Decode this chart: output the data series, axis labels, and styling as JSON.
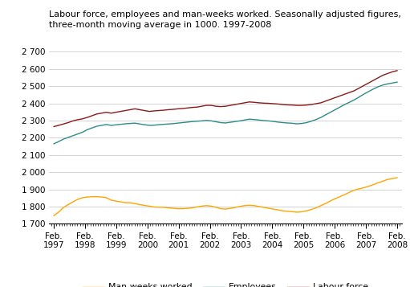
{
  "title_line1": "Labour force, employees and man-weeks worked. Seasonally adjusted figures,",
  "title_line2": "three-month moving average in 1000. 1997-2008",
  "ylim": [
    1700,
    2700
  ],
  "yticks": [
    1700,
    1800,
    1900,
    2000,
    2100,
    2200,
    2300,
    2400,
    2500,
    2600,
    2700
  ],
  "xtick_labels": [
    "Feb.\n1997",
    "Feb.\n1998",
    "Feb.\n1999",
    "Feb.\n2000",
    "Feb.\n2001",
    "Feb.\n2002",
    "Feb.\n2003",
    "Feb.\n2004",
    "Feb.\n2005",
    "Feb.\n2006",
    "Feb.\n2007",
    "Feb.\n2008"
  ],
  "labour_force_color": "#8B1A1A",
  "employees_color": "#2E8B8B",
  "man_weeks_color": "#FFA500",
  "legend_labels": [
    "Man-weeks worked",
    "Employees",
    "Labour force"
  ],
  "labour_force": [
    2265,
    2272,
    2280,
    2288,
    2298,
    2305,
    2310,
    2318,
    2328,
    2338,
    2343,
    2348,
    2343,
    2348,
    2353,
    2358,
    2363,
    2368,
    2363,
    2358,
    2353,
    2356,
    2358,
    2360,
    2363,
    2365,
    2368,
    2370,
    2373,
    2376,
    2378,
    2383,
    2388,
    2388,
    2383,
    2381,
    2383,
    2388,
    2393,
    2398,
    2403,
    2408,
    2406,
    2403,
    2401,
    2400,
    2398,
    2396,
    2393,
    2391,
    2390,
    2388,
    2388,
    2390,
    2393,
    2398,
    2403,
    2413,
    2423,
    2433,
    2443,
    2453,
    2463,
    2473,
    2488,
    2503,
    2518,
    2533,
    2548,
    2563,
    2573,
    2583,
    2590
  ],
  "employees": [
    2165,
    2178,
    2192,
    2202,
    2212,
    2222,
    2232,
    2247,
    2257,
    2267,
    2272,
    2277,
    2272,
    2275,
    2278,
    2281,
    2283,
    2285,
    2280,
    2276,
    2272,
    2273,
    2276,
    2278,
    2280,
    2282,
    2285,
    2288,
    2291,
    2294,
    2296,
    2298,
    2301,
    2298,
    2293,
    2288,
    2286,
    2290,
    2294,
    2298,
    2303,
    2308,
    2306,
    2303,
    2300,
    2298,
    2295,
    2291,
    2288,
    2286,
    2284,
    2281,
    2283,
    2288,
    2296,
    2306,
    2318,
    2333,
    2348,
    2363,
    2378,
    2393,
    2406,
    2420,
    2436,
    2453,
    2468,
    2483,
    2496,
    2506,
    2513,
    2518,
    2523
  ],
  "man_weeks": [
    1748,
    1768,
    1795,
    1812,
    1828,
    1842,
    1852,
    1856,
    1858,
    1858,
    1856,
    1852,
    1838,
    1832,
    1828,
    1823,
    1822,
    1818,
    1812,
    1807,
    1803,
    1798,
    1797,
    1796,
    1793,
    1791,
    1788,
    1788,
    1790,
    1793,
    1798,
    1803,
    1806,
    1803,
    1796,
    1788,
    1786,
    1790,
    1795,
    1801,
    1806,
    1808,
    1806,
    1801,
    1796,
    1791,
    1786,
    1781,
    1776,
    1773,
    1771,
    1768,
    1770,
    1776,
    1783,
    1793,
    1806,
    1818,
    1833,
    1846,
    1858,
    1870,
    1883,
    1896,
    1903,
    1910,
    1918,
    1928,
    1938,
    1948,
    1958,
    1963,
    1968
  ]
}
